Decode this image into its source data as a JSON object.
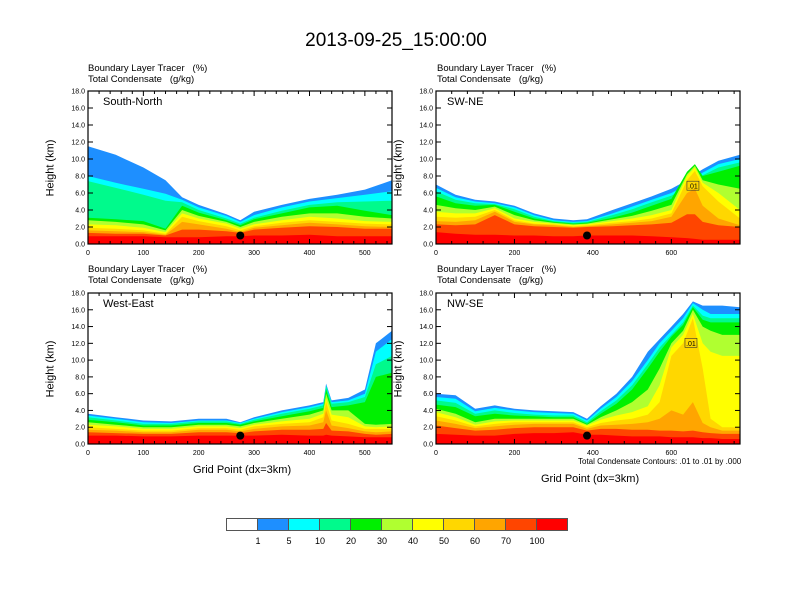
{
  "title": "2013-09-25_15:00:00",
  "colorbar": {
    "levels": [
      "1",
      "5",
      "10",
      "20",
      "30",
      "40",
      "50",
      "60",
      "70",
      "100"
    ],
    "colors": [
      "#ffffff",
      "#1e8fff",
      "#00ffff",
      "#00fa8c",
      "#00f000",
      "#b0ff30",
      "#ffff00",
      "#ffd700",
      "#ffa500",
      "#ff4500",
      "#ff0000"
    ]
  },
  "chart_data": [
    {
      "type": "area",
      "panel": "top-left",
      "name": "South-North",
      "subtitle_line1": "Boundary Layer Tracer   (%)",
      "subtitle_line2": "Total Condensate   (g/kg)",
      "ylabel": "Height (km)",
      "xlabel": "",
      "xlim": [
        0,
        549
      ],
      "ylim": [
        0,
        18
      ],
      "xticks": [
        0,
        100,
        200,
        300,
        400,
        500
      ],
      "yticks": [
        "0.0",
        "2.0",
        "4.0",
        "6.0",
        "8.0",
        "10.0",
        "12.0",
        "14.0",
        "16.0",
        "18.0"
      ],
      "marker_point": {
        "x": 275,
        "y": 1.0
      },
      "x": [
        0,
        50,
        100,
        140,
        170,
        200,
        250,
        275,
        300,
        350,
        400,
        450,
        500,
        549
      ],
      "layer_tops_km": {
        "1": [
          11.5,
          10.5,
          9.0,
          7.5,
          5.5,
          4.6,
          3.5,
          2.8,
          3.8,
          4.6,
          5.3,
          5.8,
          6.4,
          7.5
        ],
        "5": [
          8.0,
          7.2,
          6.5,
          5.9,
          5.2,
          4.3,
          3.3,
          2.6,
          3.4,
          4.3,
          5.0,
          5.4,
          5.8,
          6.2
        ],
        "10": [
          7.4,
          6.6,
          5.8,
          5.1,
          4.9,
          4.0,
          3.0,
          2.4,
          3.1,
          3.9,
          4.6,
          4.9,
          5.0,
          5.1
        ],
        "20": [
          3.1,
          2.9,
          2.7,
          1.8,
          4.5,
          3.7,
          2.8,
          2.2,
          2.9,
          3.6,
          4.3,
          4.5,
          3.9,
          3.4
        ],
        "30": [
          2.8,
          2.6,
          2.3,
          1.6,
          4.0,
          3.3,
          2.6,
          2.0,
          2.6,
          3.2,
          3.6,
          3.6,
          3.2,
          3.0
        ],
        "40": [
          2.3,
          2.2,
          1.9,
          1.4,
          3.6,
          3.0,
          2.4,
          1.8,
          2.3,
          2.8,
          3.2,
          3.0,
          2.7,
          2.6
        ],
        "50": [
          1.9,
          1.8,
          1.6,
          1.2,
          3.2,
          2.7,
          2.1,
          1.6,
          2.1,
          2.5,
          2.8,
          2.6,
          2.4,
          2.3
        ],
        "60": [
          1.6,
          1.5,
          1.4,
          1.1,
          2.6,
          2.3,
          1.8,
          1.4,
          1.9,
          2.2,
          2.5,
          2.3,
          2.1,
          2.0
        ],
        "70": [
          1.3,
          1.2,
          1.2,
          1.0,
          1.7,
          1.7,
          1.5,
          1.3,
          1.7,
          1.9,
          2.1,
          2.0,
          1.8,
          1.8
        ],
        "100": [
          0.9,
          0.9,
          0.9,
          0.8,
          0.8,
          0.8,
          0.9,
          0.9,
          1.0,
          1.0,
          1.1,
          0.9,
          0.9,
          0.9
        ]
      }
    },
    {
      "type": "area",
      "panel": "top-right",
      "name": "SW-NE",
      "subtitle_line1": "Boundary Layer Tracer   (%)",
      "subtitle_line2": "Total Condensate   (g/kg)",
      "ylabel": "Height (km)",
      "xlabel": "",
      "xlim": [
        0,
        775
      ],
      "ylim": [
        0,
        18
      ],
      "xticks": [
        0,
        200,
        400,
        600
      ],
      "yticks": [
        "0.0",
        "2.0",
        "4.0",
        "6.0",
        "8.0",
        "10.0",
        "12.0",
        "14.0",
        "16.0",
        "18.0"
      ],
      "marker_point": {
        "x": 385,
        "y": 1.0
      },
      "contour_label": ".01",
      "x": [
        0,
        50,
        100,
        150,
        200,
        250,
        300,
        350,
        385,
        450,
        500,
        550,
        600,
        640,
        660,
        680,
        720,
        775
      ],
      "layer_tops_km": {
        "1": [
          7.0,
          5.8,
          5.2,
          5.0,
          4.5,
          3.6,
          3.0,
          2.8,
          2.9,
          4.0,
          4.8,
          5.6,
          6.5,
          7.5,
          8.2,
          8.8,
          9.8,
          10.5
        ],
        "5": [
          6.6,
          5.5,
          5.0,
          4.8,
          4.3,
          3.4,
          2.8,
          2.6,
          2.7,
          3.6,
          4.4,
          5.2,
          6.0,
          7.0,
          7.8,
          8.4,
          9.4,
          10.0
        ],
        "10": [
          6.2,
          5.2,
          4.8,
          4.7,
          4.1,
          3.2,
          2.7,
          2.5,
          2.6,
          3.4,
          4.1,
          4.9,
          5.7,
          6.7,
          7.5,
          8.1,
          9.0,
          9.6
        ],
        "20": [
          5.6,
          4.8,
          4.5,
          4.6,
          3.8,
          3.0,
          2.6,
          2.4,
          2.5,
          3.1,
          3.7,
          4.5,
          5.3,
          8.5,
          9.4,
          8.0,
          8.5,
          9.2
        ],
        "30": [
          4.6,
          4.2,
          4.0,
          4.4,
          3.4,
          2.8,
          2.5,
          2.3,
          2.4,
          2.9,
          3.3,
          3.9,
          4.6,
          8.2,
          9.2,
          7.5,
          7.0,
          6.5
        ],
        "40": [
          3.8,
          3.6,
          3.6,
          4.2,
          3.0,
          2.6,
          2.4,
          2.2,
          2.3,
          2.7,
          3.0,
          3.4,
          4.0,
          8.0,
          9.0,
          7.2,
          6.0,
          4.0
        ],
        "50": [
          3.2,
          3.1,
          3.2,
          4.0,
          2.8,
          2.4,
          2.3,
          2.1,
          2.2,
          2.5,
          2.7,
          3.0,
          3.6,
          7.5,
          8.6,
          6.8,
          5.0,
          3.0
        ],
        "60": [
          2.7,
          2.6,
          2.8,
          3.8,
          2.6,
          2.3,
          2.2,
          2.0,
          2.1,
          2.3,
          2.5,
          2.7,
          3.2,
          6.0,
          6.5,
          4.5,
          3.0,
          2.2
        ],
        "70": [
          2.3,
          2.2,
          2.3,
          3.4,
          2.3,
          2.1,
          2.0,
          1.9,
          2.0,
          2.1,
          2.2,
          2.3,
          2.5,
          3.5,
          3.5,
          2.6,
          2.2,
          2.0
        ],
        "100": [
          1.4,
          1.2,
          1.1,
          1.1,
          1.0,
          1.0,
          0.9,
          0.9,
          1.0,
          1.0,
          1.0,
          0.9,
          0.8,
          0.7,
          0.6,
          0.5,
          0.5,
          0.5
        ]
      }
    },
    {
      "type": "area",
      "panel": "bottom-left",
      "name": "West-East",
      "subtitle_line1": "Boundary Layer Tracer   (%)",
      "subtitle_line2": "Total Condensate   (g/kg)",
      "ylabel": "Height (km)",
      "xlabel": "Grid Point (dx=3km)",
      "xlim": [
        0,
        549
      ],
      "ylim": [
        0,
        18
      ],
      "xticks": [
        0,
        100,
        200,
        300,
        400,
        500
      ],
      "yticks": [
        "0.0",
        "2.0",
        "4.0",
        "6.0",
        "8.0",
        "10.0",
        "12.0",
        "14.0",
        "16.0",
        "18.0"
      ],
      "marker_point": {
        "x": 275,
        "y": 1.0
      },
      "x": [
        0,
        50,
        100,
        150,
        200,
        250,
        275,
        300,
        350,
        400,
        425,
        430,
        440,
        470,
        500,
        520,
        549
      ],
      "layer_tops_km": {
        "1": [
          3.6,
          3.2,
          2.8,
          2.7,
          3.0,
          3.0,
          2.6,
          3.2,
          4.0,
          4.6,
          5.0,
          7.2,
          5.2,
          5.5,
          6.5,
          12.0,
          13.5
        ],
        "5": [
          3.4,
          3.0,
          2.6,
          2.5,
          2.8,
          2.8,
          2.5,
          3.0,
          3.8,
          4.4,
          4.8,
          7.0,
          5.0,
          5.2,
          6.0,
          11.0,
          12.5
        ],
        "10": [
          3.2,
          2.8,
          2.4,
          2.4,
          2.7,
          2.7,
          2.4,
          2.9,
          3.6,
          4.2,
          4.6,
          6.9,
          4.8,
          5.0,
          5.6,
          9.5,
          10.5
        ],
        "20": [
          2.9,
          2.6,
          2.2,
          2.2,
          2.5,
          2.5,
          2.3,
          2.7,
          3.3,
          3.9,
          4.3,
          6.5,
          4.4,
          4.6,
          5.0,
          8.0,
          8.5
        ],
        "30": [
          2.6,
          2.3,
          2.0,
          2.0,
          2.3,
          2.3,
          2.1,
          2.5,
          3.0,
          3.5,
          4.0,
          6.0,
          4.0,
          4.0,
          2.4,
          2.3,
          2.4
        ],
        "40": [
          2.3,
          2.1,
          1.8,
          1.8,
          2.1,
          2.1,
          1.9,
          2.3,
          2.7,
          3.0,
          3.6,
          5.5,
          3.5,
          3.2,
          2.1,
          2.0,
          2.1
        ],
        "50": [
          2.0,
          1.8,
          1.6,
          1.6,
          1.9,
          1.9,
          1.7,
          2.1,
          2.4,
          2.6,
          3.2,
          5.0,
          2.8,
          2.4,
          1.8,
          1.8,
          1.8
        ],
        "60": [
          1.7,
          1.6,
          1.4,
          1.4,
          1.7,
          1.7,
          1.5,
          1.8,
          2.1,
          2.2,
          2.6,
          4.0,
          2.2,
          1.9,
          1.5,
          1.4,
          1.5
        ],
        "70": [
          1.4,
          1.3,
          1.2,
          1.2,
          1.4,
          1.4,
          1.3,
          1.5,
          1.7,
          1.7,
          1.8,
          2.5,
          1.6,
          1.5,
          1.2,
          1.1,
          1.2
        ],
        "100": [
          1.0,
          1.0,
          0.9,
          0.9,
          1.0,
          1.0,
          1.0,
          1.0,
          1.1,
          1.0,
          1.0,
          1.1,
          1.0,
          0.9,
          0.8,
          0.8,
          0.8
        ]
      }
    },
    {
      "type": "area",
      "panel": "bottom-right",
      "name": "NW-SE",
      "subtitle_line1": "Boundary Layer Tracer   (%)",
      "subtitle_line2": "Total Condensate   (g/kg)",
      "ylabel": "Height (km)",
      "xlabel": "Grid Point (dx=3km)",
      "xlim": [
        0,
        775
      ],
      "ylim": [
        0,
        18
      ],
      "xticks": [
        0,
        200,
        400,
        600
      ],
      "yticks": [
        "0.0",
        "2.0",
        "4.0",
        "6.0",
        "8.0",
        "10.0",
        "12.0",
        "14.0",
        "16.0",
        "18.0"
      ],
      "marker_point": {
        "x": 385,
        "y": 1.0
      },
      "contour_label": ".01",
      "contour_note": "Total Condensate Contours: .01 to .01 by .000",
      "x": [
        0,
        50,
        100,
        150,
        200,
        250,
        300,
        350,
        385,
        420,
        460,
        500,
        540,
        570,
        600,
        630,
        655,
        680,
        700,
        730,
        775
      ],
      "layer_tops_km": {
        "1": [
          6.0,
          5.8,
          4.2,
          4.6,
          4.2,
          4.0,
          3.9,
          3.8,
          3.0,
          4.5,
          6.0,
          8.0,
          11.0,
          12.5,
          14.0,
          15.5,
          17.0,
          16.5,
          16.5,
          16.5,
          16.3
        ],
        "5": [
          5.6,
          5.4,
          3.9,
          4.3,
          4.0,
          3.8,
          3.7,
          3.6,
          2.8,
          4.2,
          5.6,
          7.5,
          10.0,
          12.0,
          13.5,
          15.0,
          16.8,
          16.0,
          15.5,
          15.5,
          15.5
        ],
        "10": [
          5.2,
          4.9,
          3.6,
          4.0,
          3.7,
          3.5,
          3.4,
          3.4,
          2.6,
          3.9,
          5.2,
          7.0,
          9.5,
          11.5,
          13.0,
          14.5,
          16.5,
          15.3,
          15.0,
          15.0,
          15.0
        ],
        "20": [
          4.7,
          4.4,
          3.3,
          3.6,
          3.4,
          3.3,
          3.2,
          3.2,
          2.4,
          3.6,
          4.8,
          6.5,
          9.0,
          11.0,
          12.8,
          14.2,
          16.3,
          14.8,
          14.5,
          14.5,
          14.5
        ],
        "30": [
          4.2,
          3.6,
          2.6,
          3.0,
          3.0,
          3.0,
          3.0,
          3.0,
          2.3,
          3.2,
          4.0,
          5.0,
          6.5,
          9.0,
          12.0,
          13.5,
          16.0,
          14.0,
          13.5,
          13.0,
          13.0
        ],
        "40": [
          3.8,
          3.2,
          2.3,
          2.7,
          2.8,
          2.8,
          2.8,
          2.8,
          2.2,
          2.9,
          3.4,
          3.8,
          4.5,
          7.0,
          11.5,
          13.0,
          15.5,
          12.0,
          11.0,
          10.5,
          10.5
        ],
        "50": [
          3.3,
          2.8,
          2.1,
          2.4,
          2.6,
          2.6,
          2.6,
          2.6,
          2.0,
          2.5,
          2.8,
          3.0,
          3.5,
          5.0,
          10.5,
          12.0,
          15.0,
          9.0,
          3.0,
          2.0,
          2.0
        ],
        "60": [
          2.8,
          2.4,
          1.9,
          2.1,
          2.3,
          2.4,
          2.4,
          2.4,
          1.8,
          2.2,
          2.3,
          2.4,
          2.6,
          3.0,
          4.0,
          3.5,
          5.0,
          2.5,
          2.0,
          1.6,
          1.6
        ],
        "70": [
          2.2,
          1.9,
          1.6,
          1.7,
          1.9,
          2.0,
          2.0,
          2.0,
          1.6,
          1.8,
          1.8,
          1.7,
          1.7,
          1.6,
          1.6,
          1.5,
          1.6,
          1.4,
          1.3,
          1.2,
          1.2
        ],
        "100": [
          1.2,
          1.1,
          1.0,
          1.0,
          1.2,
          1.3,
          1.3,
          1.4,
          1.1,
          1.1,
          1.0,
          0.9,
          0.9,
          0.9,
          0.8,
          0.8,
          0.8,
          0.7,
          0.7,
          0.6,
          0.6
        ]
      }
    }
  ]
}
